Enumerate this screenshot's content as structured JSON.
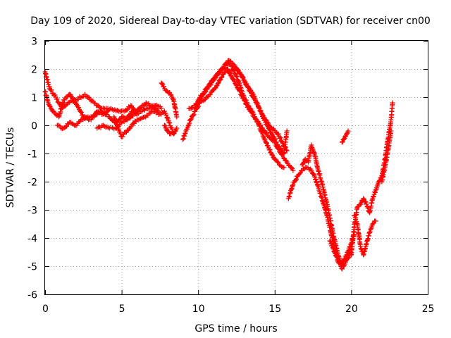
{
  "chart_data": {
    "type": "scatter",
    "title": "Day 109 of 2020, Sidereal Day-to-day VTEC variation (SDTVAR) for receiver cn00",
    "xlabel": "GPS time / hours",
    "ylabel": "SDTVAR / TECUs",
    "xlim": [
      0,
      25
    ],
    "ylim": [
      -6,
      3
    ],
    "xticks": [
      0,
      5,
      10,
      15,
      20,
      25
    ],
    "yticks": [
      -6,
      -5,
      -4,
      -3,
      -2,
      -1,
      0,
      1,
      2,
      3
    ],
    "xtick_labels": [
      "0",
      "5",
      "10",
      "15",
      "20",
      "25"
    ],
    "ytick_labels": [
      "-6",
      "-5",
      "-4",
      "-3",
      "-2",
      "-1",
      "0",
      "1",
      "2",
      "3"
    ],
    "grid": true,
    "marker": "+",
    "color": "#ff0000",
    "series": [
      {
        "name": "track-1",
        "x": [
          0.0,
          0.2,
          0.5,
          0.9,
          1.2,
          1.6,
          2.0,
          2.5,
          3.0,
          3.4,
          3.8,
          4.3,
          4.8,
          5.2,
          5.6,
          6.0,
          6.6,
          7.2,
          7.6
        ],
        "y": [
          1.2,
          0.8,
          0.5,
          0.3,
          0.9,
          1.1,
          0.8,
          0.3,
          0.2,
          0.5,
          0.4,
          0.6,
          0.5,
          0.5,
          0.7,
          0.4,
          0.6,
          0.7,
          0.6
        ]
      },
      {
        "name": "track-2",
        "x": [
          0.0,
          0.3,
          0.7,
          1.1,
          1.5,
          2.0,
          2.6,
          3.2,
          3.7,
          4.1
        ],
        "y": [
          1.9,
          1.3,
          1.0,
          0.6,
          0.8,
          0.9,
          1.1,
          0.8,
          0.6,
          0.6
        ]
      },
      {
        "name": "track-3",
        "x": [
          0.8,
          1.2,
          1.6,
          2.0,
          2.4,
          2.8,
          3.2,
          3.6,
          4.2,
          4.6,
          5.0,
          5.3,
          5.7,
          6.0
        ],
        "y": [
          0.0,
          -0.1,
          0.1,
          0.0,
          0.2,
          0.3,
          0.3,
          0.5,
          0.3,
          0.1,
          0.3,
          0.2,
          0.5,
          0.4
        ]
      },
      {
        "name": "track-4",
        "x": [
          3.4,
          3.8,
          4.2,
          4.6,
          5.0,
          5.4,
          5.8,
          6.2,
          6.6,
          7.0,
          7.4
        ],
        "y": [
          -0.1,
          0.0,
          -0.1,
          -0.1,
          0.1,
          0.2,
          0.4,
          0.6,
          0.8,
          0.7,
          0.5
        ]
      },
      {
        "name": "track-5",
        "x": [
          4.5,
          5.0,
          5.5,
          6.0,
          6.5,
          7.0,
          7.5,
          7.8,
          8.1,
          8.4
        ],
        "y": [
          0.3,
          -0.4,
          -0.1,
          0.2,
          0.3,
          0.5,
          0.4,
          0.5,
          0.1,
          -0.3
        ]
      },
      {
        "name": "track-6",
        "x": [
          7.6,
          7.8,
          8.0,
          8.2,
          8.4,
          8.6
        ],
        "y": [
          1.5,
          1.3,
          1.2,
          1.1,
          0.9,
          0.3
        ]
      },
      {
        "name": "track-7",
        "x": [
          7.8,
          8.0,
          8.2,
          8.4,
          8.6
        ],
        "y": [
          0.0,
          -0.2,
          -0.3,
          -0.3,
          -0.1
        ]
      },
      {
        "name": "track-8",
        "x": [
          9.0,
          9.2,
          9.5,
          9.8,
          10.1,
          10.4,
          10.8,
          11.2,
          11.6,
          11.9,
          12.2,
          12.6,
          13.0,
          13.4,
          13.8,
          14.2,
          14.6,
          15.0,
          15.3,
          15.6
        ],
        "y": [
          -0.5,
          -0.2,
          0.2,
          0.5,
          0.8,
          0.9,
          1.1,
          1.4,
          1.8,
          2.0,
          1.7,
          1.3,
          0.9,
          0.5,
          0.2,
          -0.3,
          -0.8,
          -1.2,
          -1.4,
          -1.5
        ]
      },
      {
        "name": "track-9",
        "x": [
          9.4,
          9.8,
          10.2,
          10.6,
          11.0,
          11.4,
          11.8,
          12.2,
          12.6,
          13.0,
          13.4,
          13.8,
          14.2,
          14.6,
          15.0,
          15.4,
          15.8,
          16.2
        ],
        "y": [
          0.6,
          0.7,
          1.0,
          1.3,
          1.6,
          1.9,
          2.2,
          2.1,
          1.6,
          1.0,
          0.6,
          0.2,
          -0.1,
          -0.4,
          -0.6,
          -1.0,
          -1.3,
          -1.6
        ]
      },
      {
        "name": "track-10",
        "x": [
          10.0,
          10.4,
          10.8,
          11.2,
          11.6,
          12.0,
          12.4,
          12.8,
          13.2,
          13.6,
          14.0,
          14.4,
          14.8,
          15.2,
          15.6,
          15.8
        ],
        "y": [
          0.9,
          1.2,
          1.5,
          1.8,
          2.0,
          2.3,
          2.1,
          1.8,
          1.4,
          1.0,
          0.6,
          0.1,
          -0.3,
          -0.7,
          -1.0,
          -0.2
        ]
      },
      {
        "name": "track-11",
        "x": [
          12.0,
          12.4,
          12.8,
          13.2,
          13.6,
          14.0,
          14.4,
          14.8,
          15.2,
          15.5,
          15.8
        ],
        "y": [
          1.9,
          2.0,
          1.8,
          1.4,
          1.1,
          0.6,
          0.2,
          -0.1,
          -0.3,
          -0.6,
          -0.9
        ]
      },
      {
        "name": "track-12",
        "x": [
          15.9,
          16.2,
          16.5,
          16.8,
          17.1,
          17.4,
          17.6,
          17.9,
          18.2,
          18.5,
          18.8,
          19.1,
          19.4,
          19.7,
          20.0,
          20.2
        ],
        "y": [
          -2.6,
          -2.1,
          -1.8,
          -1.6,
          -1.5,
          -1.6,
          -1.8,
          -2.3,
          -2.8,
          -3.4,
          -4.1,
          -4.7,
          -4.9,
          -4.6,
          -4.2,
          -3.8
        ]
      },
      {
        "name": "track-13",
        "x": [
          16.8,
          17.0,
          17.2,
          17.4,
          17.6,
          17.8,
          18.0,
          18.2,
          18.5,
          18.8,
          19.1,
          19.4
        ],
        "y": [
          -1.4,
          -1.2,
          -1.3,
          -0.7,
          -1.0,
          -1.5,
          -1.9,
          -2.3,
          -3.0,
          -3.8,
          -4.5,
          -5.1
        ]
      },
      {
        "name": "track-14",
        "x": [
          18.6,
          18.9,
          19.2,
          19.5,
          19.8,
          20.0
        ],
        "y": [
          -4.1,
          -4.5,
          -4.9,
          -5.0,
          -4.7,
          -4.4
        ]
      },
      {
        "name": "track-15",
        "x": [
          19.4,
          19.6,
          19.8
        ],
        "y": [
          -0.6,
          -0.4,
          -0.2
        ]
      },
      {
        "name": "track-16",
        "x": [
          19.8,
          20.0,
          20.2,
          20.4,
          20.6,
          20.8,
          21.0,
          21.2,
          21.4,
          21.6,
          21.8,
          22.0,
          22.2,
          22.4,
          22.6,
          22.7
        ],
        "y": [
          -4.5,
          -4.6,
          -3.6,
          -2.9,
          -2.8,
          -2.6,
          -2.8,
          -3.1,
          -2.6,
          -2.3,
          -2.0,
          -1.8,
          -1.2,
          -0.5,
          0.2,
          0.8
        ]
      },
      {
        "name": "track-17",
        "x": [
          20.2,
          20.4,
          20.6,
          20.8,
          21.0,
          21.2,
          21.4,
          21.6
        ],
        "y": [
          -3.2,
          -3.5,
          -4.3,
          -4.6,
          -4.2,
          -3.8,
          -3.5,
          -3.4
        ]
      },
      {
        "name": "track-18",
        "x": [
          22.0,
          22.2,
          22.4,
          22.6
        ],
        "y": [
          -2.0,
          -1.5,
          -0.9,
          -0.2
        ]
      }
    ]
  }
}
